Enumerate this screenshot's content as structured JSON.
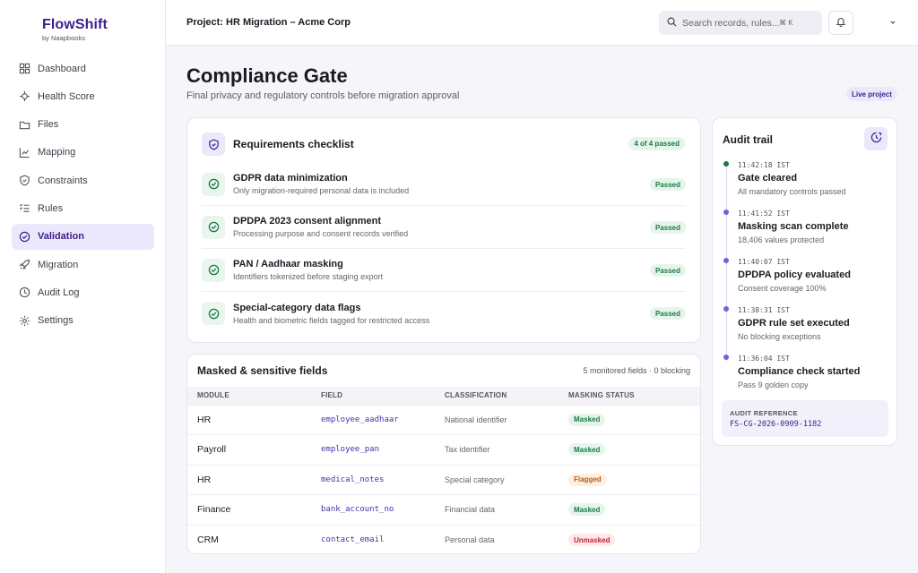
{
  "brand": {
    "name": "FlowShift",
    "sub": "by Naapbooks"
  },
  "sidebar": {
    "items": [
      {
        "label": "Dashboard",
        "icon": "grid-icon"
      },
      {
        "label": "Health Score",
        "icon": "heartbeat-icon"
      },
      {
        "label": "Files",
        "icon": "folder-icon"
      },
      {
        "label": "Mapping",
        "icon": "chart-icon"
      },
      {
        "label": "Constraints",
        "icon": "shield-icon"
      },
      {
        "label": "Rules",
        "icon": "list-icon"
      },
      {
        "label": "Validation",
        "icon": "check-circle-icon",
        "active": true
      },
      {
        "label": "Migration",
        "icon": "rocket-icon"
      },
      {
        "label": "Audit Log",
        "icon": "clock-icon"
      },
      {
        "label": "Settings",
        "icon": "gear-icon"
      }
    ]
  },
  "header": {
    "project": "Project: HR Migration – Acme Corp",
    "search_placeholder": "Search records, rules...",
    "shortcut": "⌘ K"
  },
  "page": {
    "title": "Compliance Gate",
    "subtitle": "Final privacy and regulatory controls before migration approval",
    "badge": "Live project"
  },
  "checklist": {
    "title": "Requirements checklist",
    "count": "4 of 4 passed",
    "items": [
      {
        "title": "GDPR data minimization",
        "sub": "Only migration-required personal data is included",
        "status": "Passed"
      },
      {
        "title": "DPDPA 2023 consent alignment",
        "sub": "Processing purpose and consent records verified",
        "status": "Passed"
      },
      {
        "title": "PAN / Aadhaar masking",
        "sub": "Identifiers tokenized before staging export",
        "status": "Passed"
      },
      {
        "title": "Special-category data flags",
        "sub": "Health and biometric fields tagged for restricted access",
        "status": "Passed"
      }
    ]
  },
  "fields": {
    "title": "Masked & sensitive fields",
    "summary": "5 monitored fields · 0 blocking",
    "columns": [
      "MODULE",
      "FIELD",
      "CLASSIFICATION",
      "MASKING STATUS"
    ],
    "rows": [
      {
        "module": "HR",
        "field": "employee_aadhaar",
        "classification": "National identifier",
        "status": "Masked",
        "kind": "masked"
      },
      {
        "module": "Payroll",
        "field": "employee_pan",
        "classification": "Tax identifier",
        "status": "Masked",
        "kind": "masked"
      },
      {
        "module": "HR",
        "field": "medical_notes",
        "classification": "Special category",
        "status": "Flagged",
        "kind": "flagged"
      },
      {
        "module": "Finance",
        "field": "bank_account_no",
        "classification": "Financial data",
        "status": "Masked",
        "kind": "masked"
      },
      {
        "module": "CRM",
        "field": "contact_email",
        "classification": "Personal data",
        "status": "Unmasked",
        "kind": "unmasked"
      }
    ]
  },
  "audit": {
    "title": "Audit trail",
    "events": [
      {
        "time": "11:42:18 IST",
        "title": "Gate cleared",
        "sub": "All mandatory controls passed",
        "color": "#1b7a43"
      },
      {
        "time": "11:41:52 IST",
        "title": "Masking scan complete",
        "sub": "18,406 values protected",
        "color": "#7b5ce0"
      },
      {
        "time": "11:40:07 IST",
        "title": "DPDPA policy evaluated",
        "sub": "Consent coverage 100%",
        "color": "#7b5ce0"
      },
      {
        "time": "11:38:31 IST",
        "title": "GDPR rule set executed",
        "sub": "No blocking exceptions",
        "color": "#7b5ce0"
      },
      {
        "time": "11:36:04 IST",
        "title": "Compliance check started",
        "sub": "Pass 9 golden copy",
        "color": "#7b5ce0"
      }
    ],
    "reference_label": "AUDIT REFERENCE",
    "reference_value": "FS-CG-2026-0909-1182"
  }
}
